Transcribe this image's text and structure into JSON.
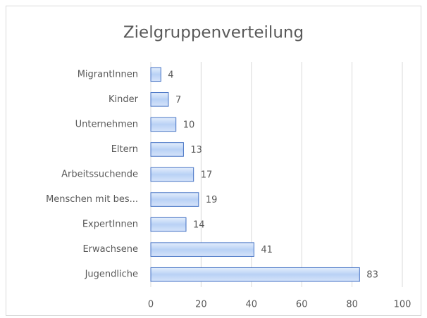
{
  "chart_data": {
    "type": "bar",
    "title": "Zielgruppenverteilung",
    "categories": [
      "MigrantInnen",
      "Kinder",
      "Unternehmen",
      "Eltern",
      "Arbeitssuchende",
      "Menschen mit bes...",
      "ExpertInnen",
      "Erwachsene",
      "Jugendliche"
    ],
    "values": [
      4,
      7,
      10,
      13,
      17,
      19,
      14,
      41,
      83
    ],
    "color": "#4472c4",
    "xlim": [
      0,
      100
    ],
    "xticks": [
      0,
      20,
      40,
      60,
      80,
      100
    ],
    "grid": true
  }
}
